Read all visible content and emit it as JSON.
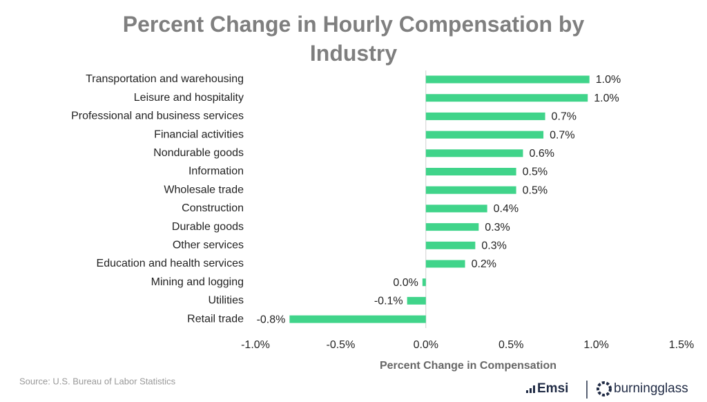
{
  "chart_data": {
    "type": "barh",
    "title": "Percent Change in Hourly Compensation by Industry",
    "categories": [
      "Transportation and warehousing",
      "Leisure and hospitality",
      "Professional and business services",
      "Financial activities",
      "Nondurable goods",
      "Information",
      "Wholesale trade",
      "Construction",
      "Durable goods",
      "Other services",
      "Education and health services",
      "Mining and logging",
      "Utilities",
      "Retail trade"
    ],
    "values": [
      0.96,
      0.95,
      0.7,
      0.69,
      0.57,
      0.53,
      0.53,
      0.36,
      0.31,
      0.29,
      0.23,
      -0.02,
      -0.11,
      -0.8
    ],
    "value_labels": [
      "1.0%",
      "1.0%",
      "0.7%",
      "0.7%",
      "0.6%",
      "0.5%",
      "0.5%",
      "0.4%",
      "0.3%",
      "0.3%",
      "0.2%",
      "0.0%",
      "-0.1%",
      "-0.8%"
    ],
    "color": "#40d48a",
    "xlabel": "Percent Change in Compensation",
    "xlim": [
      -1.0,
      1.5
    ],
    "xticks": [
      {
        "value": -1.0,
        "label": "-1.0%"
      },
      {
        "value": -0.5,
        "label": "-0.5%"
      },
      {
        "value": 0,
        "label": "0.0%"
      },
      {
        "value": 0.5,
        "label": "0.5%"
      },
      {
        "value": 1.0,
        "label": "1.0%"
      },
      {
        "value": 1.5,
        "label": "1.5%"
      }
    ],
    "source": "Source:  U.S. Bureau of Labor Statistics",
    "logos": [
      "Emsi",
      "burningglass"
    ]
  }
}
